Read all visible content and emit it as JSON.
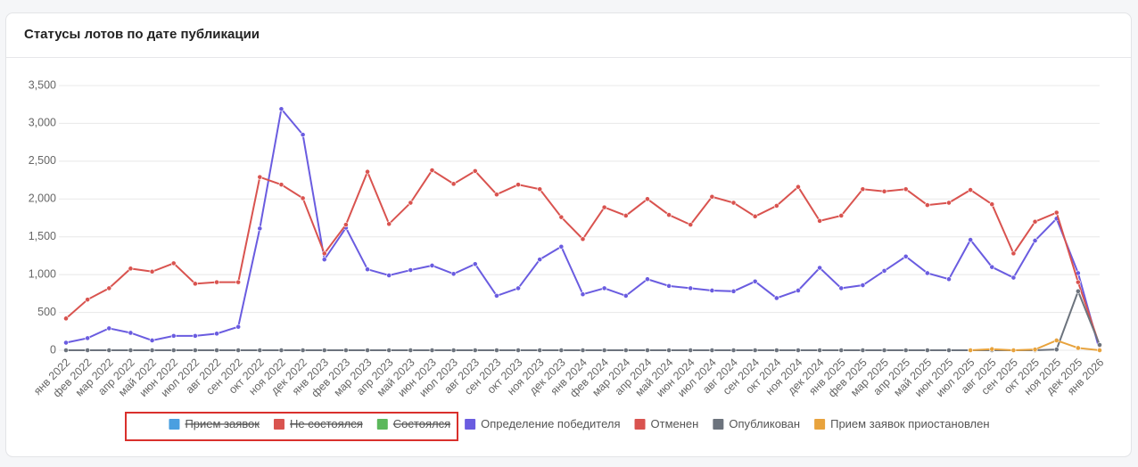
{
  "chart_data": {
    "type": "line",
    "title": "Статусы лотов по дате публикации",
    "categories": [
      "янв 2022",
      "фев 2022",
      "мар 2022",
      "апр 2022",
      "май 2022",
      "июн 2022",
      "июл 2022",
      "авг 2022",
      "сен 2022",
      "окт 2022",
      "ноя 2022",
      "дек 2022",
      "янв 2023",
      "фев 2023",
      "мар 2023",
      "апр 2023",
      "май 2023",
      "июн 2023",
      "июл 2023",
      "авг 2023",
      "сен 2023",
      "окт 2023",
      "ноя 2023",
      "дек 2023",
      "янв 2024",
      "фев 2024",
      "мар 2024",
      "апр 2024",
      "май 2024",
      "июн 2024",
      "июл 2024",
      "авг 2024",
      "сен 2024",
      "окт 2024",
      "ноя 2024",
      "дек 2024",
      "янв 2025",
      "фев 2025",
      "мар 2025",
      "апр 2025",
      "май 2025",
      "июн 2025",
      "июл 2025",
      "авг 2025",
      "сен 2025",
      "окт 2025",
      "ноя 2025",
      "дек 2025",
      "янв 2026"
    ],
    "ylim": [
      0,
      3500
    ],
    "yticks": [
      0,
      500,
      {
        "value": 1000,
        "label": "1,000"
      },
      {
        "value": 1500,
        "label": "1,500"
      },
      {
        "value": 2000,
        "label": "2,000"
      },
      {
        "value": 2500,
        "label": "2,500"
      },
      {
        "value": 3000,
        "label": "3,000"
      },
      {
        "value": 3500,
        "label": "3,500"
      }
    ],
    "grid": true,
    "legend": "bottom",
    "series": [
      {
        "name": "Прием заявок",
        "color": "#4a9fe0",
        "hidden": true
      },
      {
        "name": "Не состоялся",
        "color": "#d9534f",
        "hidden": true
      },
      {
        "name": "Состоялся",
        "color": "#5cb85c",
        "hidden": true
      },
      {
        "name": "Определение победителя",
        "color": "#6a5ce0",
        "values": [
          100,
          160,
          290,
          230,
          130,
          190,
          190,
          220,
          310,
          1610,
          3190,
          2850,
          1200,
          1620,
          1070,
          990,
          1060,
          1120,
          1010,
          1140,
          720,
          820,
          1200,
          1370,
          740,
          820,
          720,
          940,
          850,
          820,
          790,
          780,
          910,
          690,
          790,
          1090,
          820,
          860,
          1050,
          1240,
          1020,
          940,
          1460,
          1100,
          960,
          1450,
          1740,
          1020,
          0
        ]
      },
      {
        "name": "Отменен",
        "color": "#d9534f",
        "values": [
          420,
          670,
          820,
          1080,
          1040,
          1150,
          880,
          900,
          900,
          2290,
          2190,
          2010,
          1280,
          1660,
          2360,
          1670,
          1950,
          2380,
          2200,
          2370,
          2060,
          2190,
          2130,
          1760,
          1470,
          1890,
          1780,
          2000,
          1790,
          1660,
          2030,
          1950,
          1770,
          1910,
          2160,
          1710,
          1780,
          2130,
          2100,
          2130,
          1920,
          1950,
          2120,
          1930,
          1280,
          1700,
          1820,
          900,
          60
        ]
      },
      {
        "name": "Опубликован",
        "color": "#6c737d",
        "values": [
          0,
          0,
          0,
          0,
          0,
          0,
          0,
          0,
          0,
          0,
          0,
          0,
          0,
          0,
          0,
          0,
          0,
          0,
          0,
          0,
          0,
          0,
          0,
          0,
          0,
          0,
          0,
          0,
          0,
          0,
          0,
          0,
          0,
          0,
          0,
          0,
          0,
          0,
          0,
          0,
          0,
          0,
          0,
          0,
          0,
          0,
          10,
          780,
          70
        ]
      },
      {
        "name": "Прием заявок приостановлен",
        "color": "#e8a33d",
        "values": [
          null,
          null,
          null,
          null,
          null,
          null,
          null,
          null,
          null,
          null,
          null,
          null,
          null,
          null,
          null,
          null,
          null,
          null,
          null,
          null,
          null,
          null,
          null,
          null,
          null,
          null,
          null,
          null,
          null,
          null,
          null,
          null,
          null,
          null,
          null,
          null,
          null,
          null,
          null,
          null,
          null,
          null,
          0,
          15,
          0,
          10,
          130,
          30,
          0
        ]
      }
    ]
  }
}
